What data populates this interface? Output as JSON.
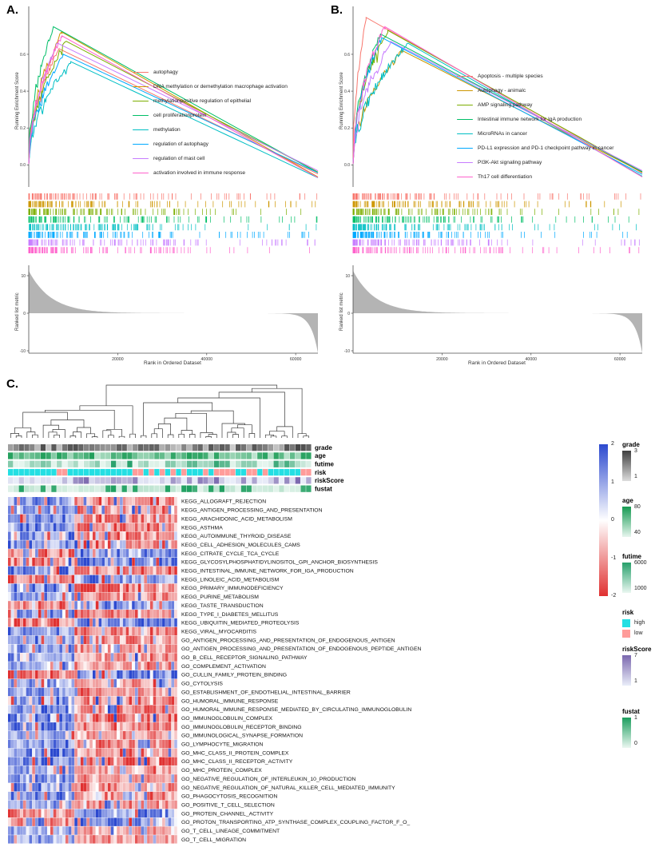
{
  "panels": {
    "a": {
      "label": "A."
    },
    "b": {
      "label": "B."
    },
    "c": {
      "label": "C."
    }
  },
  "chart_data": [
    {
      "id": "gsea_a",
      "type": "line",
      "subtype": "gsea-enrichment",
      "panel": "A",
      "ylabel": "Running Enrichment Score",
      "ylabel_bottom": "Ranked list metric",
      "xlabel": "Rank in Ordered Dataset",
      "x_ticks": [
        "20000",
        "40000",
        "60000"
      ],
      "x_max": 65000,
      "es_yticks": [
        "0.0",
        "0.2",
        "0.4",
        "0.6"
      ],
      "metric_yticks": [
        "10",
        "0",
        "-10"
      ],
      "legend_position": "inside-right",
      "series": [
        {
          "name": "autophagy",
          "color": "#F8766D",
          "peak": 0.63,
          "peak_pos": 0.105
        },
        {
          "name": "DNA methylation or demethylation macrophage activation",
          "color": "#CD9600",
          "peak": 0.72,
          "peak_pos": 0.115
        },
        {
          "name": "methylationpositive regulation of epithelial",
          "color": "#7CAE00",
          "peak": 0.67,
          "peak_pos": 0.13
        },
        {
          "name": "cell proliferationprotein",
          "color": "#00BE67",
          "peak": 0.75,
          "peak_pos": 0.085
        },
        {
          "name": "methylation",
          "color": "#00BFC4",
          "peak": 0.56,
          "peak_pos": 0.145
        },
        {
          "name": "regulation of autophagy",
          "color": "#00A9FF",
          "peak": 0.6,
          "peak_pos": 0.12
        },
        {
          "name": "regulation of mast cell",
          "color": "#C77CFF",
          "peak": 0.66,
          "peak_pos": 0.1
        },
        {
          "name": "activation involved in immune response",
          "color": "#FF61CC",
          "peak": 0.7,
          "peak_pos": 0.115
        }
      ]
    },
    {
      "id": "gsea_b",
      "type": "line",
      "subtype": "gsea-enrichment",
      "panel": "B",
      "ylabel": "Running Enrichment Score",
      "ylabel_bottom": "Ranked list metric",
      "xlabel": "Rank in Ordered Dataset",
      "x_ticks": [
        "20000",
        "40000",
        "60000"
      ],
      "x_max": 65000,
      "es_yticks": [
        "0.0",
        "0.2",
        "0.4",
        "0.6"
      ],
      "metric_yticks": [
        "10",
        "0",
        "-10"
      ],
      "legend_position": "inside-right",
      "series": [
        {
          "name": "Apoptosis - multiple species",
          "color": "#F8766D",
          "peak": 0.8,
          "peak_pos": 0.045
        },
        {
          "name": "Autophagy - animalc",
          "color": "#CD9600",
          "peak": 0.62,
          "peak_pos": 0.17
        },
        {
          "name": "AMP signaling pathway",
          "color": "#7CAE00",
          "peak": 0.73,
          "peak_pos": 0.12
        },
        {
          "name": "Intestinal immune network for IgA production",
          "color": "#00BE67",
          "peak": 0.71,
          "peak_pos": 0.095
        },
        {
          "name": "MicroRNAs in cancer",
          "color": "#00BFC4",
          "peak": 0.66,
          "peak_pos": 0.19
        },
        {
          "name": "PD-L1 expression and PD-1 checkpoint pathway in cancer",
          "color": "#00A9FF",
          "peak": 0.69,
          "peak_pos": 0.1
        },
        {
          "name": "PI3K-Akt signaling pathway",
          "color": "#C77CFF",
          "peak": 0.67,
          "peak_pos": 0.13
        },
        {
          "name": "Th17 cell differentiation",
          "color": "#FF61CC",
          "peak": 0.75,
          "peak_pos": 0.11
        }
      ]
    },
    {
      "id": "heatmap_c",
      "type": "heatmap",
      "panel": "C",
      "n_samples": 56,
      "legend_position": "right",
      "value_scale": {
        "min": -2,
        "max": 2,
        "ticks": [
          "2",
          "1",
          "0",
          "-1",
          "-2"
        ],
        "high_color": "#2c49cf",
        "mid_color": "#ffffff",
        "low_color": "#e03131"
      },
      "cluster_split_fraction": 0.4,
      "inverted_row_indices": [
        6,
        7,
        9,
        12,
        14,
        20,
        36,
        37
      ],
      "rows": [
        "KEGG_ALLOGRAFT_REJECTION",
        "KEGG_ANTIGEN_PROCESSING_AND_PRESENTATION",
        "KEGG_ARACHIDONIC_ACID_METABOLISM",
        "KEGG_ASTHMA",
        "KEGG_AUTOIMMUNE_THYROID_DISEASE",
        "KEGG_CELL_ADHESION_MOLECULES_CAMS",
        "KEGG_CITRATE_CYCLE_TCA_CYCLE",
        "KEGG_GLYCOSYLPHOSPHATIDYLINOSITOL_GPI_ANCHOR_BIOSYNTHESIS",
        "KEGG_INTESTINAL_IMMUNE_NETWORK_FOR_IGA_PRODUCTION",
        "KEGG_LINOLEIC_ACID_METABOLISM",
        "KEGG_PRIMARY_IMMUNODEFICIENCY",
        "KEGG_PURINE_METABOLISM",
        "KEGG_TASTE_TRANSDUCTION",
        "KEGG_TYPE_I_DIABETES_MELLITUS",
        "KEGG_UBIQUITIN_MEDIATED_PROTEOLYSIS",
        "KEGG_VIRAL_MYOCARDITIS",
        "GO_ANTIGEN_PROCESSING_AND_PRESENTATION_OF_ENDOGENOUS_ANTIGEN",
        "GO_ANTIGEN_PROCESSING_AND_PRESENTATION_OF_ENDOGENOUS_PEPTIDE_ANTIGEN",
        "GO_B_CELL_RECEPTOR_SIGNALING_PATHWAY",
        "GO_COMPLEMENT_ACTIVATION",
        "GO_CULLIN_FAMILY_PROTEIN_BINDING",
        "GO_CYTOLYSIS",
        "GO_ESTABLISHMENT_OF_ENDOTHELIAL_INTESTINAL_BARRIER",
        "GO_HUMORAL_IMMUNE_RESPONSE",
        "GO_HUMORAL_IMMUNE_RESPONSE_MEDIATED_BY_CIRCULATING_IMMUNOGLOBULIN",
        "GO_IMMUNOGLOBULIN_COMPLEX",
        "GO_IMMUNOGLOBULIN_RECEPTOR_BINDING",
        "GO_IMMUNOLOGICAL_SYNAPSE_FORMATION",
        "GO_LYMPHOCYTE_MIGRATION",
        "GO_MHC_CLASS_II_PROTEIN_COMPLEX",
        "GO_MHC_CLASS_II_RECEPTOR_ACTIVITY",
        "GO_MHC_PROTEIN_COMPLEX",
        "GO_NEGATIVE_REGULATION_OF_INTERLEUKIN_10_PRODUCTION",
        "GO_NEGATIVE_REGULATION_OF_NATURAL_KILLER_CELL_MEDIATED_IMMUNITY",
        "GO_PHAGOCYTOSIS_RECOGNITION",
        "GO_POSITIVE_T_CELL_SELECTION",
        "GO_PROTEIN_CHANNEL_ACTIVITY",
        "GO_PROTON_TRANSPORTING_ATP_SYNTHASE_COMPLEX_COUPLING_FACTOR_F_O_",
        "GO_T_CELL_LINEAGE_COMMITMENT",
        "GO_T_CELL_MIGRATION"
      ],
      "annotations": [
        {
          "name": "grade",
          "type": "gradient",
          "colors": [
            "#dcdcdc",
            "#3f3f3f"
          ],
          "legend_ticks": [
            "3",
            "1"
          ]
        },
        {
          "name": "age",
          "type": "gradient",
          "colors": [
            "#e7f6ee",
            "#169a52"
          ],
          "legend_ticks": [
            "80",
            "40"
          ]
        },
        {
          "name": "futime",
          "type": "gradient",
          "colors": [
            "#eaf7f1",
            "#27a06b"
          ],
          "legend_ticks": [
            "6000",
            "1000"
          ]
        },
        {
          "name": "risk",
          "type": "discrete",
          "items": [
            {
              "label": "high",
              "color": "#24dfe3"
            },
            {
              "label": "low",
              "color": "#ff9c9a"
            }
          ]
        },
        {
          "name": "riskScore",
          "type": "gradient",
          "colors": [
            "#e9edf9",
            "#7b68ae"
          ],
          "legend_ticks": [
            "7",
            "1"
          ]
        },
        {
          "name": "fustat",
          "type": "gradient",
          "colors": [
            "#ebf7f1",
            "#1c9e5e"
          ],
          "legend_ticks": [
            "1",
            "0"
          ]
        }
      ]
    }
  ]
}
